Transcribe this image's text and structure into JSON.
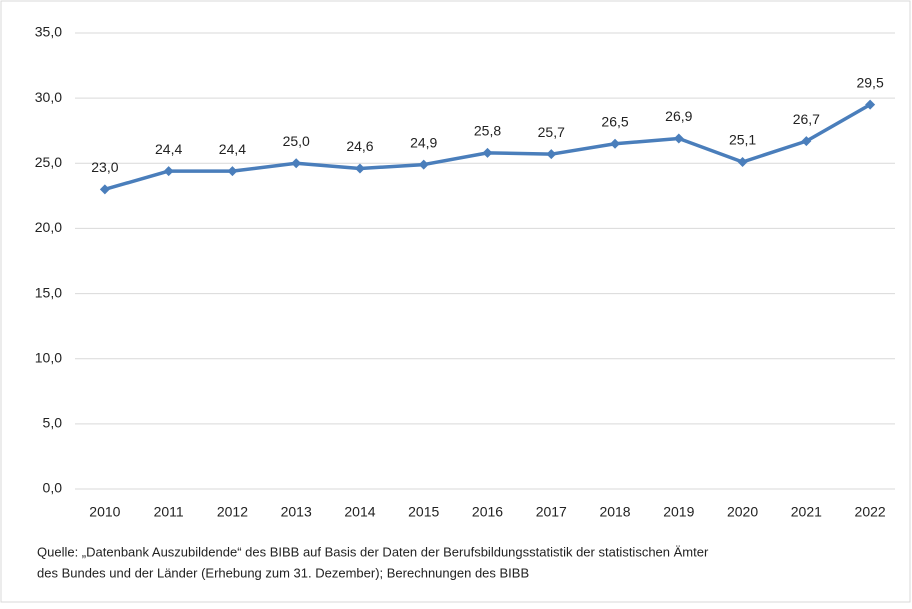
{
  "chart_data": {
    "type": "line",
    "categories": [
      "2010",
      "2011",
      "2012",
      "2013",
      "2014",
      "2015",
      "2016",
      "2017",
      "2018",
      "2019",
      "2020",
      "2021",
      "2022"
    ],
    "series": [
      {
        "color": "#4a7ebb",
        "values": [
          23.0,
          24.4,
          24.4,
          25.0,
          24.6,
          24.9,
          25.8,
          25.7,
          26.5,
          26.9,
          25.1,
          26.7,
          29.5
        ],
        "value_labels": [
          "23,0",
          "24,4",
          "24,4",
          "25,0",
          "24,6",
          "24,9",
          "25,8",
          "25,7",
          "26,5",
          "26,9",
          "25,1",
          "26,7",
          "29,5"
        ]
      }
    ],
    "ylim": [
      0,
      35
    ],
    "yticks": [
      {
        "value": 0,
        "label": "0,0"
      },
      {
        "value": 5,
        "label": "5,0"
      },
      {
        "value": 10,
        "label": "10,0"
      },
      {
        "value": 15,
        "label": "15,0"
      },
      {
        "value": 20,
        "label": "20,0"
      },
      {
        "value": 25,
        "label": "25,0"
      },
      {
        "value": 30,
        "label": "30,0"
      },
      {
        "value": 35,
        "label": "35,0"
      }
    ],
    "grid": true,
    "source": [
      "Quelle: „Datenbank Auszubildende“ des BIBB auf Basis der Daten der Berufsbildungsstatistik der statistischen Ämter",
      "des Bundes und der Länder (Erhebung zum 31. Dezember); Berechnungen des BIBB"
    ]
  }
}
